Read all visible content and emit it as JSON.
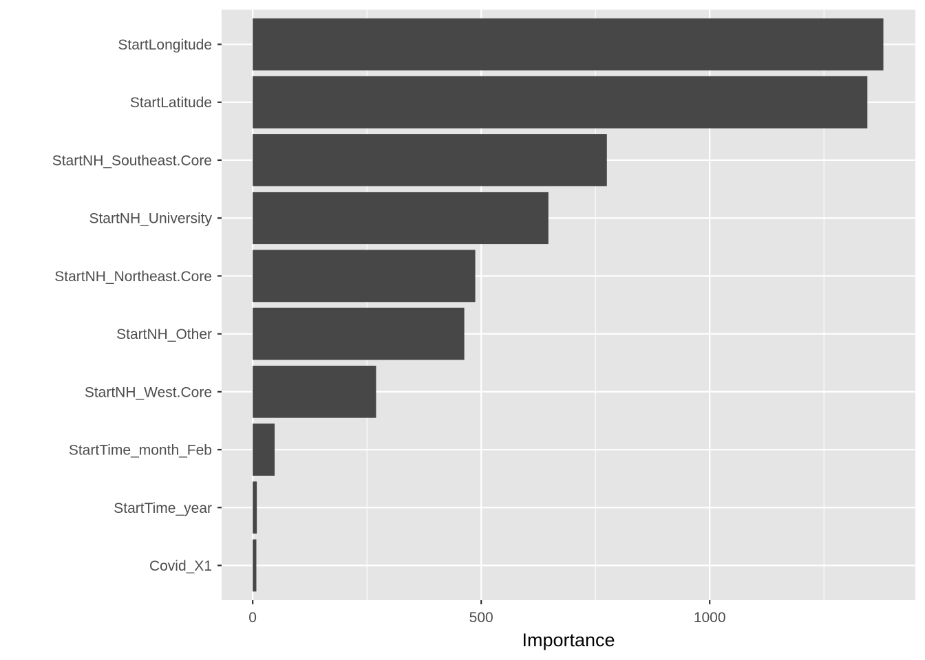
{
  "chart_data": {
    "type": "bar",
    "orientation": "horizontal",
    "categories": [
      "StartLongitude",
      "StartLatitude",
      "StartNH_Southeast.Core",
      "StartNH_University",
      "StartNH_Northeast.Core",
      "StartNH_Other",
      "StartNH_West.Core",
      "StartTime_month_Feb",
      "StartTime_year",
      "Covid_X1"
    ],
    "values": [
      1380,
      1345,
      775,
      647,
      487,
      463,
      270,
      48,
      9,
      8
    ],
    "title": "",
    "xlabel": "Importance",
    "ylabel": "",
    "xlim": [
      -68,
      1450
    ],
    "x_ticks": [
      0,
      500,
      1000
    ],
    "x_minor_ticks": [
      250,
      750,
      1250
    ],
    "grid": true,
    "legend": "none",
    "colors": {
      "bar": "#474747",
      "panel": "#e5e5e5",
      "grid": "#ffffff",
      "tick_text": "#4d4d4d",
      "tick_mark": "#333333"
    }
  }
}
